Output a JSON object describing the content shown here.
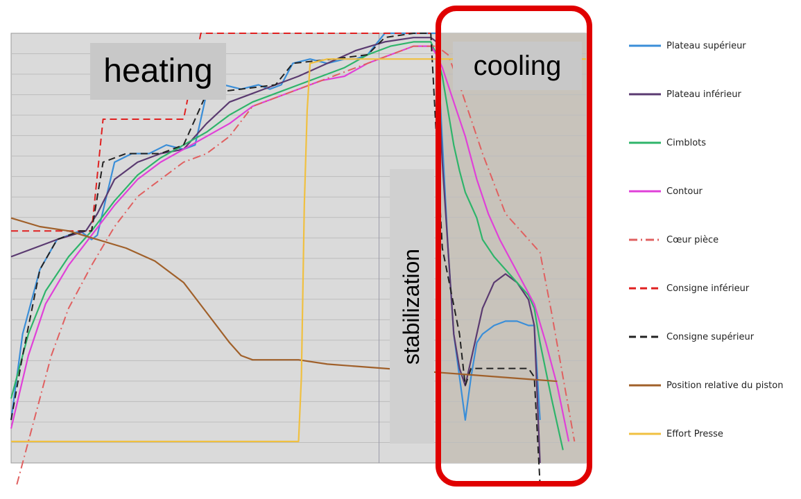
{
  "annotations": {
    "heating": "heating",
    "cooling": "cooling",
    "stabilization": "stabilization"
  },
  "colors": {
    "plot_background": "#dadada",
    "cooling_background": "#c8c3bb",
    "gridline": "#bdbdbd",
    "highlight_frame": "#e00000"
  },
  "chart_data": {
    "type": "line",
    "title": "",
    "xlabel": "",
    "ylabel": "",
    "xlim": [
      0,
      100
    ],
    "ylim": [
      0,
      100
    ],
    "grid": true,
    "legend_position": "right",
    "phases": [
      {
        "name": "heating",
        "x_range": [
          0,
          64
        ]
      },
      {
        "name": "stabilization",
        "x_range": [
          64,
          74
        ]
      },
      {
        "name": "cooling",
        "x_range": [
          74,
          100
        ]
      }
    ],
    "series": [
      {
        "name": "Plateau supérieur",
        "color": "#3a8ed8",
        "dash": "solid",
        "points": [
          [
            0,
            10
          ],
          [
            2,
            30
          ],
          [
            5,
            45
          ],
          [
            8,
            52
          ],
          [
            12,
            54
          ],
          [
            14,
            52
          ],
          [
            15,
            53
          ],
          [
            18,
            70
          ],
          [
            21,
            72
          ],
          [
            24,
            72
          ],
          [
            27,
            74
          ],
          [
            30,
            73
          ],
          [
            32,
            74
          ],
          [
            34,
            86
          ],
          [
            37,
            88
          ],
          [
            40,
            87
          ],
          [
            43,
            88
          ],
          [
            45,
            87
          ],
          [
            47,
            88
          ],
          [
            49,
            93
          ],
          [
            52,
            94
          ],
          [
            55,
            93
          ],
          [
            58,
            94
          ],
          [
            60,
            94
          ],
          [
            62,
            95
          ],
          [
            65,
            100
          ],
          [
            68,
            100
          ],
          [
            71,
            100
          ],
          [
            74,
            100
          ],
          [
            75,
            75
          ],
          [
            76,
            50
          ],
          [
            77,
            30
          ],
          [
            78,
            20
          ],
          [
            79,
            10
          ],
          [
            80,
            20
          ],
          [
            81,
            28
          ],
          [
            82,
            30
          ],
          [
            84,
            32
          ],
          [
            86,
            33
          ],
          [
            88,
            33
          ],
          [
            90,
            32
          ],
          [
            91,
            32
          ],
          [
            92,
            10
          ]
        ]
      },
      {
        "name": "Plateau inférieur",
        "color": "#5a3a70",
        "dash": "solid",
        "points": [
          [
            0,
            48
          ],
          [
            4,
            50
          ],
          [
            8,
            52
          ],
          [
            13,
            54
          ],
          [
            15,
            58
          ],
          [
            18,
            66
          ],
          [
            22,
            70
          ],
          [
            26,
            72
          ],
          [
            30,
            73
          ],
          [
            34,
            79
          ],
          [
            38,
            84
          ],
          [
            42,
            86
          ],
          [
            46,
            88
          ],
          [
            50,
            90
          ],
          [
            55,
            93
          ],
          [
            60,
            96
          ],
          [
            65,
            98
          ],
          [
            70,
            99
          ],
          [
            73,
            99
          ],
          [
            74,
            98
          ],
          [
            75,
            70
          ],
          [
            76,
            50
          ],
          [
            77,
            30
          ],
          [
            78,
            22
          ],
          [
            79,
            18
          ],
          [
            80,
            24
          ],
          [
            81,
            30
          ],
          [
            82,
            36
          ],
          [
            84,
            42
          ],
          [
            86,
            44
          ],
          [
            88,
            42
          ],
          [
            90,
            38
          ],
          [
            91,
            32
          ],
          [
            92,
            0
          ]
        ]
      },
      {
        "name": "Cimblots",
        "color": "#2eb46a",
        "dash": "solid",
        "points": [
          [
            0,
            15
          ],
          [
            3,
            30
          ],
          [
            6,
            40
          ],
          [
            10,
            48
          ],
          [
            14,
            54
          ],
          [
            18,
            61
          ],
          [
            22,
            67
          ],
          [
            26,
            71
          ],
          [
            30,
            74
          ],
          [
            34,
            77
          ],
          [
            38,
            81
          ],
          [
            42,
            84
          ],
          [
            46,
            86
          ],
          [
            50,
            88
          ],
          [
            54,
            90
          ],
          [
            58,
            92
          ],
          [
            62,
            95
          ],
          [
            66,
            97
          ],
          [
            70,
            98
          ],
          [
            73,
            98
          ],
          [
            74,
            95
          ],
          [
            75,
            90
          ],
          [
            76,
            82
          ],
          [
            77,
            74
          ],
          [
            78,
            68
          ],
          [
            79,
            63
          ],
          [
            80,
            60
          ],
          [
            81,
            57
          ],
          [
            82,
            52
          ],
          [
            84,
            48
          ],
          [
            86,
            45
          ],
          [
            88,
            42
          ],
          [
            90,
            39
          ],
          [
            91,
            36
          ],
          [
            92,
            28
          ],
          [
            94,
            15
          ],
          [
            96,
            3
          ]
        ]
      },
      {
        "name": "Contour",
        "color": "#e040d8",
        "dash": "solid",
        "points": [
          [
            0,
            8
          ],
          [
            3,
            25
          ],
          [
            6,
            37
          ],
          [
            10,
            46
          ],
          [
            14,
            53
          ],
          [
            18,
            60
          ],
          [
            22,
            66
          ],
          [
            26,
            70
          ],
          [
            30,
            73
          ],
          [
            34,
            76
          ],
          [
            38,
            79
          ],
          [
            42,
            83
          ],
          [
            46,
            85
          ],
          [
            50,
            87
          ],
          [
            54,
            89
          ],
          [
            58,
            90
          ],
          [
            62,
            93
          ],
          [
            66,
            95
          ],
          [
            70,
            97
          ],
          [
            73,
            97
          ],
          [
            74,
            95
          ],
          [
            75,
            92
          ],
          [
            77,
            84
          ],
          [
            79,
            76
          ],
          [
            81,
            66
          ],
          [
            83,
            58
          ],
          [
            85,
            52
          ],
          [
            87,
            47
          ],
          [
            89,
            42
          ],
          [
            91,
            37
          ],
          [
            93,
            28
          ],
          [
            95,
            18
          ],
          [
            97,
            5
          ]
        ]
      },
      {
        "name": "Cœur pièce",
        "color": "#e06060",
        "dash": "dashdot",
        "points": [
          [
            1,
            -5
          ],
          [
            4,
            10
          ],
          [
            7,
            25
          ],
          [
            10,
            36
          ],
          [
            14,
            46
          ],
          [
            18,
            55
          ],
          [
            22,
            62
          ],
          [
            26,
            66
          ],
          [
            30,
            70
          ],
          [
            34,
            72
          ],
          [
            38,
            76
          ],
          [
            42,
            83
          ],
          [
            46,
            85
          ],
          [
            50,
            87
          ],
          [
            54,
            89
          ],
          [
            58,
            91
          ],
          [
            62,
            93
          ],
          [
            66,
            95
          ],
          [
            70,
            97
          ],
          [
            74,
            97
          ],
          [
            76,
            95
          ],
          [
            78,
            88
          ],
          [
            80,
            80
          ],
          [
            82,
            72
          ],
          [
            84,
            65
          ],
          [
            86,
            58
          ],
          [
            88,
            55
          ],
          [
            90,
            52
          ],
          [
            92,
            49
          ],
          [
            94,
            35
          ],
          [
            96,
            20
          ],
          [
            98,
            5
          ]
        ]
      },
      {
        "name": "Consigne inférieur",
        "color": "#e02020",
        "dash": "dash",
        "points": [
          [
            0,
            54
          ],
          [
            14,
            54
          ],
          [
            16,
            80
          ],
          [
            24,
            80
          ],
          [
            27,
            80
          ],
          [
            30,
            80
          ],
          [
            33,
            100
          ],
          [
            40,
            100
          ],
          [
            47,
            100
          ],
          [
            49,
            100
          ],
          [
            51,
            100
          ],
          [
            55,
            100
          ],
          [
            58,
            100
          ],
          [
            62,
            100
          ],
          [
            64,
            100
          ],
          [
            70,
            100
          ],
          [
            73,
            100
          ]
        ]
      },
      {
        "name": "Consigne supérieur",
        "color": "#222222",
        "dash": "dash",
        "points": [
          [
            0,
            10
          ],
          [
            2,
            25
          ],
          [
            5,
            45
          ],
          [
            8,
            52
          ],
          [
            12,
            54
          ],
          [
            14,
            54
          ],
          [
            16,
            70
          ],
          [
            20,
            72
          ],
          [
            26,
            72
          ],
          [
            30,
            74
          ],
          [
            34,
            86
          ],
          [
            40,
            87
          ],
          [
            46,
            88
          ],
          [
            49,
            93
          ],
          [
            56,
            94
          ],
          [
            62,
            95
          ],
          [
            65,
            99
          ],
          [
            70,
            100
          ],
          [
            73,
            100
          ],
          [
            75,
            50
          ],
          [
            78,
            30
          ],
          [
            79,
            18
          ],
          [
            80,
            22
          ],
          [
            82,
            22
          ],
          [
            88,
            22
          ],
          [
            90,
            22
          ],
          [
            91,
            20
          ],
          [
            92,
            -5
          ]
        ]
      },
      {
        "name": "Position relative du piston",
        "color": "#a0602a",
        "dash": "solid",
        "points": [
          [
            0,
            57
          ],
          [
            5,
            55
          ],
          [
            10,
            54
          ],
          [
            15,
            52
          ],
          [
            20,
            50
          ],
          [
            25,
            47
          ],
          [
            30,
            42
          ],
          [
            34,
            35
          ],
          [
            38,
            28
          ],
          [
            40,
            25
          ],
          [
            42,
            24
          ],
          [
            46,
            24
          ],
          [
            50,
            24
          ],
          [
            55,
            23
          ],
          [
            60,
            22.5
          ],
          [
            65,
            22
          ],
          [
            70,
            21.5
          ],
          [
            75,
            21
          ],
          [
            80,
            20.5
          ],
          [
            85,
            20
          ],
          [
            90,
            19.5
          ],
          [
            95,
            19
          ]
        ]
      },
      {
        "name": "Effort Presse",
        "color": "#f0c040",
        "dash": "solid",
        "points": [
          [
            0,
            5
          ],
          [
            25,
            5
          ],
          [
            50,
            5
          ],
          [
            50.5,
            20
          ],
          [
            51,
            60
          ],
          [
            51.5,
            82
          ],
          [
            52,
            93
          ],
          [
            55,
            94
          ],
          [
            60,
            94
          ],
          [
            65,
            94
          ],
          [
            70,
            94
          ],
          [
            75,
            94
          ],
          [
            80,
            94
          ],
          [
            85,
            94
          ],
          [
            90,
            94
          ],
          [
            95,
            94
          ],
          [
            100,
            94
          ]
        ]
      }
    ]
  }
}
